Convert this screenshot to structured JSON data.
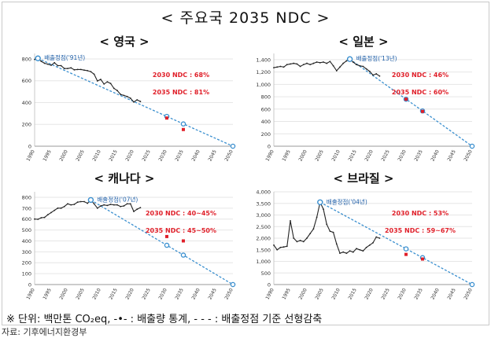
{
  "page": {
    "title": "< 주요국 2035 NDC >",
    "legend_text": "※ 단위: 백만톤 CO₂eq,  -•- : 배출량 통계,  - - - : 배출정점 기준 선형감축",
    "source": "자료: 기후에너지환경부"
  },
  "colors": {
    "emissions_line": "#222222",
    "trend_line": "#3a8fcf",
    "ndc_text": "#e0202a",
    "peak_text": "#1f5fa8",
    "target_marker": "#e0202a"
  },
  "chart_data": [
    {
      "type": "line",
      "title": "< 영국 >",
      "x_ticks": [
        "1990",
        "1995",
        "2000",
        "2005",
        "2010",
        "2015",
        "2020",
        "2025",
        "2030",
        "2035",
        "2040",
        "2045",
        "2050"
      ],
      "y_ticks": [
        "0",
        "200",
        "400",
        "600",
        "800"
      ],
      "xlim": [
        1990,
        2050
      ],
      "ylim": [
        0,
        850
      ],
      "grid": true,
      "series": [
        {
          "x": [
            1990,
            1991,
            1992,
            1993,
            1994,
            1995,
            1996,
            1997,
            1998,
            1999,
            2000,
            2001,
            2002,
            2003,
            2004,
            2005,
            2006,
            2007,
            2008,
            2009,
            2010,
            2011,
            2012,
            2013,
            2014,
            2015,
            2016,
            2017,
            2018,
            2019,
            2020,
            2021,
            2022
          ],
          "y": [
            795,
            805,
            778,
            760,
            752,
            742,
            765,
            738,
            738,
            712,
            712,
            718,
            700,
            703,
            703,
            697,
            692,
            683,
            660,
            598,
            612,
            570,
            590,
            575,
            530,
            510,
            475,
            465,
            455,
            440,
            405,
            425,
            410
          ]
        },
        {
          "x": [
            1991,
            2050
          ],
          "y": [
            805,
            0
          ]
        }
      ],
      "peak_label": "배출정점('91년)",
      "peak": {
        "x": 1991,
        "y": 805
      },
      "ndc_labels": [
        "2030 NDC : 68%",
        "2035 NDC : 81%"
      ],
      "trend_markers": [
        {
          "x": 2030,
          "y": 273
        },
        {
          "x": 2035,
          "y": 204
        }
      ],
      "ndc_targets": [
        {
          "x": 2030,
          "y": 258
        },
        {
          "x": 2035,
          "y": 153
        }
      ]
    },
    {
      "type": "line",
      "title": "< 일본 >",
      "x_ticks": [
        "1990",
        "1995",
        "2000",
        "2005",
        "2010",
        "2015",
        "2020",
        "2025",
        "2030",
        "2035",
        "2040",
        "2045",
        "2050"
      ],
      "y_ticks": [
        "0",
        "200",
        "400",
        "600",
        "800",
        "1,000",
        "1,200",
        "1,400"
      ],
      "xlim": [
        1990,
        2050
      ],
      "ylim": [
        0,
        1500
      ],
      "grid": true,
      "series": [
        {
          "x": [
            1990,
            1991,
            1992,
            1993,
            1994,
            1995,
            1996,
            1997,
            1998,
            1999,
            2000,
            2001,
            2002,
            2003,
            2004,
            2005,
            2006,
            2007,
            2008,
            2009,
            2010,
            2011,
            2012,
            2013,
            2014,
            2015,
            2016,
            2017,
            2018,
            2019,
            2020,
            2021,
            2022
          ],
          "y": [
            1270,
            1280,
            1290,
            1280,
            1320,
            1330,
            1340,
            1330,
            1290,
            1320,
            1340,
            1320,
            1340,
            1360,
            1350,
            1360,
            1340,
            1370,
            1300,
            1220,
            1280,
            1340,
            1380,
            1408,
            1360,
            1320,
            1300,
            1290,
            1250,
            1210,
            1150,
            1170,
            1135
          ]
        },
        {
          "x": [
            2013,
            2050
          ],
          "y": [
            1408,
            0
          ]
        }
      ],
      "peak_label": "배출정점('13년)",
      "peak": {
        "x": 2013,
        "y": 1408
      },
      "ndc_labels": [
        "2030 NDC : 46%",
        "2035 NDC : 60%"
      ],
      "trend_markers": [
        {
          "x": 2030,
          "y": 760
        },
        {
          "x": 2035,
          "y": 570
        }
      ],
      "ndc_targets": [
        {
          "x": 2030,
          "y": 760
        },
        {
          "x": 2035,
          "y": 563
        }
      ]
    },
    {
      "type": "line",
      "title": "< 캐나다 >",
      "x_ticks": [
        "1990",
        "1995",
        "2000",
        "2005",
        "2010",
        "2015",
        "2020",
        "2025",
        "2030",
        "2035",
        "2040",
        "2045",
        "2050"
      ],
      "y_ticks": [
        "0",
        "100",
        "200",
        "300",
        "400",
        "500",
        "600",
        "700",
        "800"
      ],
      "xlim": [
        1990,
        2050
      ],
      "ylim": [
        0,
        850
      ],
      "grid": true,
      "series": [
        {
          "x": [
            1990,
            1991,
            1992,
            1993,
            1994,
            1995,
            1996,
            1997,
            1998,
            1999,
            2000,
            2001,
            2002,
            2003,
            2004,
            2005,
            2006,
            2007,
            2008,
            2009,
            2010,
            2011,
            2012,
            2013,
            2014,
            2015,
            2016,
            2017,
            2018,
            2019,
            2020,
            2021,
            2022
          ],
          "y": [
            600,
            598,
            612,
            615,
            640,
            660,
            680,
            700,
            700,
            715,
            740,
            730,
            735,
            755,
            760,
            760,
            745,
            775,
            740,
            700,
            720,
            730,
            725,
            735,
            730,
            730,
            715,
            720,
            740,
            740,
            670,
            690,
            705
          ]
        },
        {
          "x": [
            2007,
            2050
          ],
          "y": [
            775,
            0
          ]
        }
      ],
      "peak_label": "배출정점('07년)",
      "peak": {
        "x": 2007,
        "y": 775
      },
      "ndc_labels": [
        "2030 NDC : 40~45%",
        "2035 NDC : 45~50%"
      ],
      "trend_markers": [
        {
          "x": 2030,
          "y": 360
        },
        {
          "x": 2035,
          "y": 270
        }
      ],
      "ndc_targets": [
        {
          "x": 2030,
          "y": 440
        },
        {
          "x": 2035,
          "y": 400
        }
      ]
    },
    {
      "type": "line",
      "title": "< 브라질 >",
      "x_ticks": [
        "1990",
        "1995",
        "2000",
        "2005",
        "2010",
        "2015",
        "2020",
        "2025",
        "2030",
        "2035",
        "2040",
        "2045",
        "2050"
      ],
      "y_ticks": [
        "0",
        "500",
        "1,000",
        "1,500",
        "2,000",
        "2,500",
        "3,000",
        "3,500",
        "4,000"
      ],
      "xlim": [
        1990,
        2050
      ],
      "ylim": [
        0,
        4000
      ],
      "grid": true,
      "series": [
        {
          "x": [
            1990,
            1991,
            1992,
            1993,
            1994,
            1995,
            1996,
            1997,
            1998,
            1999,
            2000,
            2001,
            2002,
            2003,
            2004,
            2005,
            2006,
            2007,
            2008,
            2009,
            2010,
            2011,
            2012,
            2013,
            2014,
            2015,
            2016,
            2017,
            2018,
            2019,
            2020,
            2021,
            2022
          ],
          "y": [
            1700,
            1500,
            1600,
            1620,
            1650,
            2750,
            2000,
            1850,
            1900,
            1850,
            2000,
            2200,
            2400,
            2900,
            3550,
            3250,
            2600,
            2300,
            2250,
            1750,
            1350,
            1400,
            1350,
            1450,
            1400,
            1550,
            1500,
            1450,
            1600,
            1700,
            1800,
            2050,
            2000
          ]
        },
        {
          "x": [
            2004,
            2050
          ],
          "y": [
            3550,
            0
          ]
        }
      ],
      "peak_label": "배출정점('04년)",
      "peak": {
        "x": 2004,
        "y": 3550
      },
      "ndc_labels": [
        "2030 NDC : 53%",
        "2035 NDC : 59~67%"
      ],
      "trend_markers": [
        {
          "x": 2030,
          "y": 1540
        },
        {
          "x": 2035,
          "y": 1160
        }
      ],
      "ndc_targets": [
        {
          "x": 2030,
          "y": 1300
        },
        {
          "x": 2035,
          "y": 1100
        }
      ]
    }
  ]
}
